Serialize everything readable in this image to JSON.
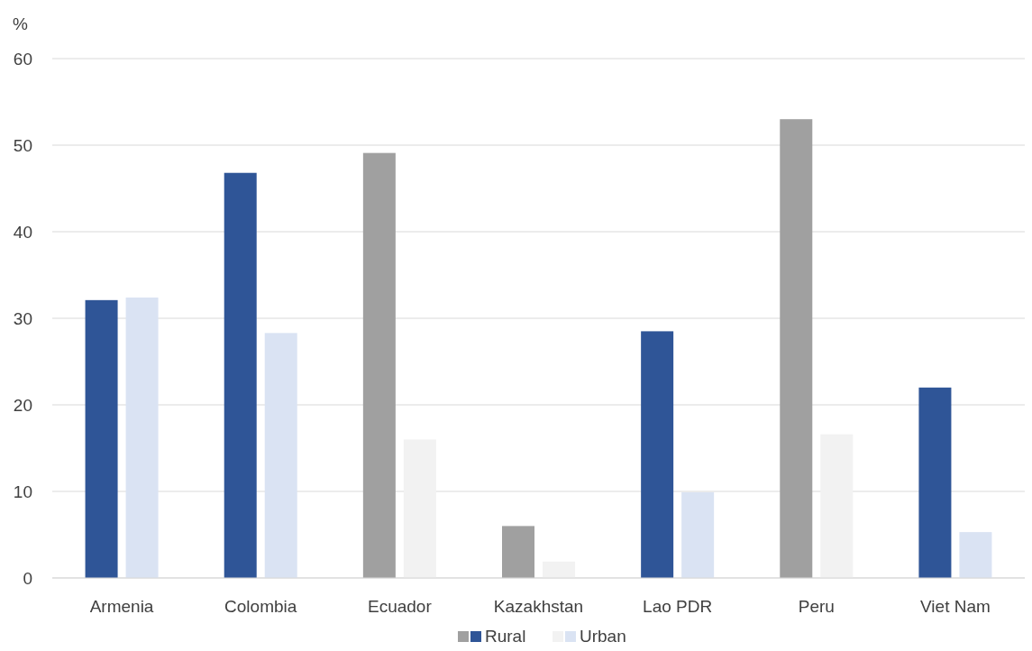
{
  "chart_data": {
    "type": "bar",
    "ylabel": "%",
    "categories": [
      "Armenia",
      "Colombia",
      "Ecuador",
      "Kazakhstan",
      "Lao PDR",
      "Peru",
      "Viet Nam"
    ],
    "series": [
      {
        "name": "Rural",
        "color": "#2f5597",
        "colors": [
          "#2f5597",
          "#2f5597",
          "#a0a0a0",
          "#a0a0a0",
          "#2f5597",
          "#a0a0a0",
          "#2f5597"
        ],
        "values": [
          32.1,
          46.8,
          49.1,
          6.0,
          28.5,
          53.0,
          22.0
        ]
      },
      {
        "name": "Urban",
        "color": "#dae3f3",
        "colors": [
          "#dae3f3",
          "#dae3f3",
          "#f2f2f2",
          "#f2f2f2",
          "#dae3f3",
          "#f2f2f2",
          "#dae3f3"
        ],
        "values": [
          32.4,
          28.3,
          16.0,
          1.9,
          9.9,
          16.6,
          5.3
        ]
      }
    ],
    "ylim": [
      0,
      60
    ],
    "yticks": [
      0,
      10,
      20,
      30,
      40,
      50,
      60
    ],
    "grid": "y",
    "legend": "bottom"
  }
}
